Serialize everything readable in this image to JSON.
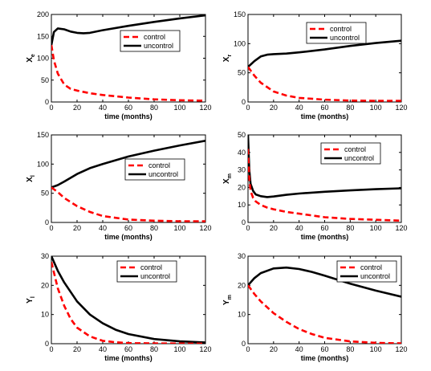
{
  "style": {
    "control_color": "#ff0000",
    "uncontrol_color": "#000000"
  },
  "chart_data": [
    {
      "type": "line",
      "ylabel_main": "X",
      "ylabel_sub": "e",
      "xlabel": "time (months)",
      "xlim": [
        0,
        120
      ],
      "ylim": [
        0,
        200
      ],
      "xticks": [
        0,
        20,
        40,
        60,
        80,
        100,
        120
      ],
      "yticks": [
        0,
        50,
        100,
        150,
        200
      ],
      "legend": {
        "placement": "top-right"
      },
      "series": [
        {
          "name": "control",
          "style": "dashed",
          "x": [
            0,
            2,
            5,
            10,
            15,
            20,
            30,
            40,
            60,
            80,
            100,
            120
          ],
          "y": [
            130,
            95,
            65,
            40,
            30,
            26,
            20,
            16,
            10,
            6,
            4,
            3
          ]
        },
        {
          "name": "uncontrol",
          "style": "solid",
          "x": [
            0,
            2,
            5,
            10,
            15,
            20,
            25,
            30,
            40,
            60,
            80,
            100,
            120
          ],
          "y": [
            130,
            160,
            168,
            166,
            161,
            158,
            157,
            158,
            164,
            174,
            183,
            191,
            198
          ]
        }
      ]
    },
    {
      "type": "line",
      "ylabel_main": "X",
      "ylabel_sub": "r",
      "xlabel": "time (months)",
      "xlim": [
        0,
        120
      ],
      "ylim": [
        0,
        150
      ],
      "xticks": [
        0,
        20,
        40,
        60,
        80,
        100,
        120
      ],
      "yticks": [
        0,
        50,
        100,
        150
      ],
      "legend": {
        "placement": "top-right"
      },
      "series": [
        {
          "name": "control",
          "style": "dashed",
          "x": [
            0,
            5,
            10,
            20,
            30,
            40,
            60,
            80,
            100,
            120
          ],
          "y": [
            60,
            45,
            33,
            18,
            11,
            7,
            4,
            2.5,
            2,
            2
          ]
        },
        {
          "name": "uncontrol",
          "style": "solid",
          "x": [
            0,
            5,
            10,
            15,
            20,
            30,
            40,
            60,
            80,
            100,
            120
          ],
          "y": [
            60,
            70,
            78,
            81,
            82,
            83,
            85,
            90,
            96,
            101,
            105
          ]
        }
      ]
    },
    {
      "type": "line",
      "ylabel_main": "X",
      "ylabel_sub": "l",
      "xlabel": "time (months)",
      "xlim": [
        0,
        120
      ],
      "ylim": [
        0,
        150
      ],
      "xticks": [
        0,
        20,
        40,
        60,
        80,
        100,
        120
      ],
      "yticks": [
        0,
        50,
        100,
        150
      ],
      "legend": {
        "placement": "right"
      },
      "series": [
        {
          "name": "control",
          "style": "dashed",
          "x": [
            0,
            5,
            10,
            20,
            30,
            40,
            60,
            80,
            100,
            120
          ],
          "y": [
            60,
            52,
            42,
            28,
            18,
            11,
            5,
            3,
            2,
            2
          ]
        },
        {
          "name": "uncontrol",
          "style": "solid",
          "x": [
            0,
            5,
            10,
            20,
            30,
            40,
            60,
            80,
            100,
            120
          ],
          "y": [
            60,
            64,
            70,
            83,
            93,
            100,
            113,
            123,
            132,
            140
          ]
        }
      ]
    },
    {
      "type": "line",
      "ylabel_main": "X",
      "ylabel_sub": "m",
      "xlabel": "time (months)",
      "xlim": [
        0,
        120
      ],
      "ylim": [
        0,
        50
      ],
      "xticks": [
        0,
        20,
        40,
        60,
        80,
        100,
        120
      ],
      "yticks": [
        0,
        10,
        20,
        30,
        40,
        50
      ],
      "legend": {
        "placement": "top-right"
      },
      "series": [
        {
          "name": "control",
          "style": "dashed",
          "x": [
            0,
            1,
            2,
            4,
            6,
            10,
            15,
            20,
            30,
            40,
            60,
            80,
            100,
            120
          ],
          "y": [
            42,
            25,
            18,
            14,
            12,
            10,
            8.5,
            7.5,
            6,
            5,
            3,
            2,
            1.5,
            1
          ]
        },
        {
          "name": "uncontrol",
          "style": "solid",
          "x": [
            0,
            1,
            2,
            4,
            6,
            10,
            15,
            20,
            30,
            40,
            60,
            80,
            100,
            120
          ],
          "y": [
            50,
            30,
            22,
            18,
            16,
            15,
            14.5,
            14.8,
            15.8,
            16.5,
            17.5,
            18.3,
            19,
            19.5
          ]
        }
      ]
    },
    {
      "type": "line",
      "ylabel_main": "Y",
      "ylabel_sub": "l",
      "xlabel": "time (months)",
      "xlim": [
        0,
        120
      ],
      "ylim": [
        0,
        30
      ],
      "xticks": [
        0,
        20,
        40,
        60,
        80,
        100,
        120
      ],
      "yticks": [
        0,
        10,
        20,
        30
      ],
      "legend": {
        "placement": "top-right"
      },
      "series": [
        {
          "name": "control",
          "style": "dashed",
          "x": [
            0,
            5,
            10,
            15,
            20,
            30,
            40,
            50,
            60,
            80,
            100,
            120
          ],
          "y": [
            28,
            19,
            13,
            8.5,
            5.5,
            2.5,
            1,
            0.5,
            0.2,
            0.1,
            0.05,
            0
          ]
        },
        {
          "name": "uncontrol",
          "style": "solid",
          "x": [
            0,
            5,
            10,
            20,
            30,
            40,
            50,
            60,
            80,
            100,
            120
          ],
          "y": [
            30,
            25,
            21,
            14.5,
            10,
            7,
            4.8,
            3.3,
            1.6,
            0.8,
            0.4
          ]
        }
      ]
    },
    {
      "type": "line",
      "ylabel_main": "Y",
      "ylabel_sub": "m",
      "xlabel": "time (months)",
      "xlim": [
        0,
        120
      ],
      "ylim": [
        0,
        30
      ],
      "xticks": [
        0,
        20,
        40,
        60,
        80,
        100,
        120
      ],
      "yticks": [
        0,
        10,
        20,
        30
      ],
      "legend": {
        "placement": "top-right"
      },
      "series": [
        {
          "name": "control",
          "style": "dashed",
          "x": [
            0,
            5,
            10,
            20,
            30,
            40,
            50,
            60,
            80,
            100,
            120
          ],
          "y": [
            20,
            17,
            14.5,
            10.5,
            7.5,
            5,
            3.3,
            2,
            0.8,
            0.3,
            0.1
          ]
        },
        {
          "name": "uncontrol",
          "style": "solid",
          "x": [
            0,
            5,
            10,
            20,
            30,
            40,
            50,
            60,
            80,
            100,
            120
          ],
          "y": [
            20,
            22.5,
            24.2,
            25.8,
            26.1,
            25.6,
            24.6,
            23.3,
            20.6,
            18.2,
            16.1
          ]
        }
      ]
    }
  ]
}
